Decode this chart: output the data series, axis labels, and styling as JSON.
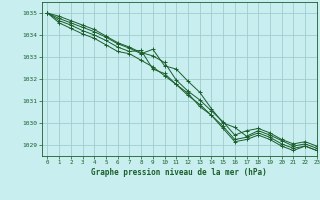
{
  "background_color": "#c8eef0",
  "grid_color": "#a0ccd0",
  "line_color": "#1a5e2a",
  "title": "Graphe pression niveau de la mer (hPa)",
  "title_color": "#1a5e2a",
  "xlim": [
    -0.5,
    23
  ],
  "ylim": [
    1028.5,
    1035.5
  ],
  "yticks": [
    1029,
    1030,
    1031,
    1032,
    1033,
    1034,
    1035
  ],
  "xticks": [
    0,
    1,
    2,
    3,
    4,
    5,
    6,
    7,
    8,
    9,
    10,
    11,
    12,
    13,
    14,
    15,
    16,
    17,
    18,
    19,
    20,
    21,
    22,
    23
  ],
  "series": [
    [
      1035.0,
      1034.75,
      1034.55,
      1034.35,
      1034.15,
      1033.9,
      1033.6,
      1033.4,
      1033.15,
      1033.35,
      1032.6,
      1032.45,
      1031.9,
      1031.4,
      1030.65,
      1030.0,
      1029.8,
      1029.4,
      1029.65,
      1029.45,
      1029.2,
      1028.95,
      1029.05,
      1028.85
    ],
    [
      1035.0,
      1034.65,
      1034.45,
      1034.2,
      1034.0,
      1033.75,
      1033.45,
      1033.25,
      1033.3,
      1032.45,
      1032.25,
      1031.75,
      1031.35,
      1030.75,
      1030.35,
      1029.85,
      1029.25,
      1029.35,
      1029.55,
      1029.35,
      1029.05,
      1028.85,
      1028.95,
      1028.75
    ],
    [
      1035.0,
      1034.85,
      1034.65,
      1034.45,
      1034.25,
      1033.95,
      1033.65,
      1033.45,
      1033.2,
      1033.05,
      1032.75,
      1031.95,
      1031.45,
      1031.05,
      1030.55,
      1030.05,
      1029.45,
      1029.65,
      1029.75,
      1029.55,
      1029.25,
      1029.05,
      1029.15,
      1028.95
    ],
    [
      1035.0,
      1034.55,
      1034.3,
      1034.05,
      1033.85,
      1033.55,
      1033.25,
      1033.15,
      1032.85,
      1032.55,
      1032.15,
      1031.75,
      1031.25,
      1030.85,
      1030.35,
      1029.75,
      1029.15,
      1029.25,
      1029.45,
      1029.25,
      1028.95,
      1028.75,
      1028.95,
      1028.75
    ]
  ]
}
